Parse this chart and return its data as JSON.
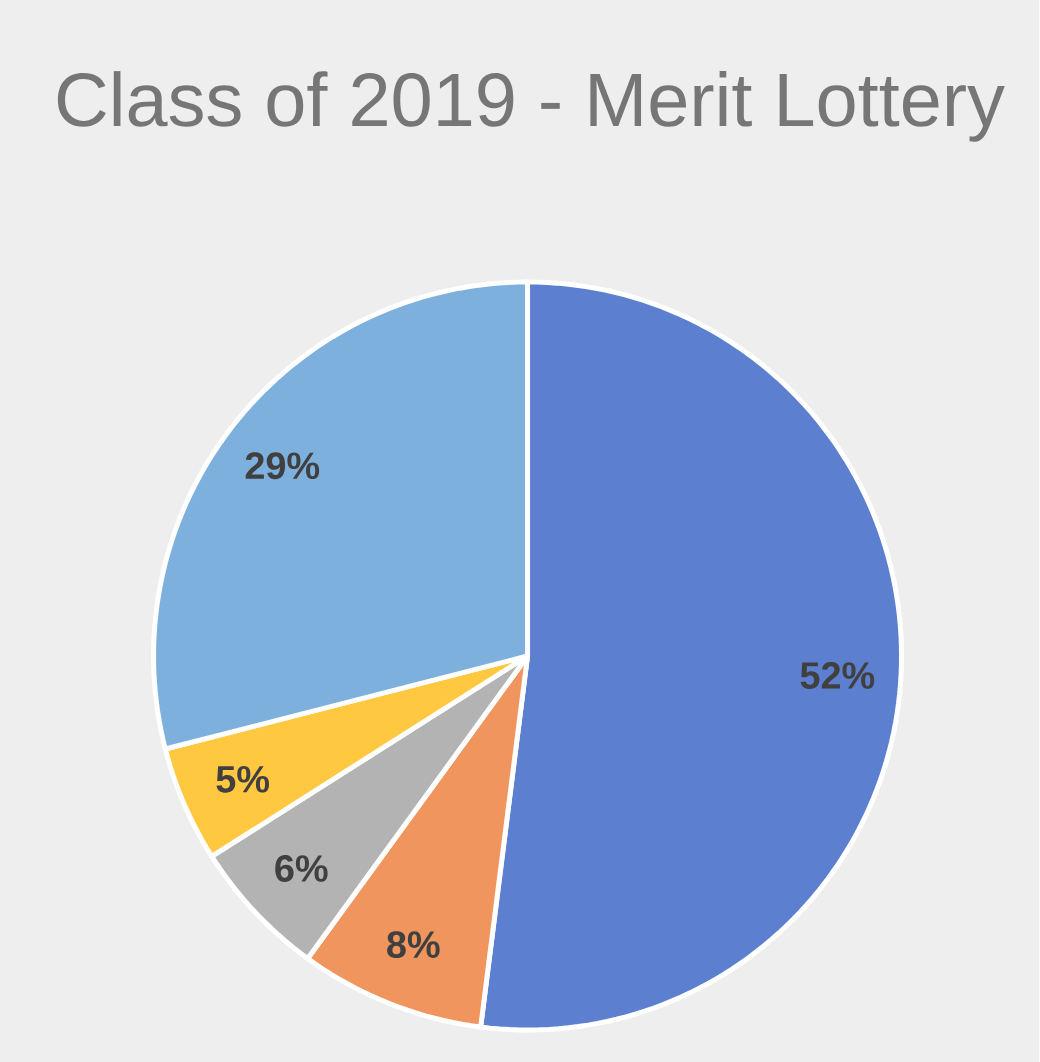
{
  "chart_data": {
    "type": "pie",
    "title": "Class of 2019 - Merit Lottery",
    "categories": [
      null,
      null,
      null,
      null,
      null
    ],
    "values": [
      52,
      8,
      6,
      5,
      29
    ],
    "colors": [
      "#5c80cf",
      "#f0955e",
      "#b3b3b3",
      "#ffc840",
      "#7eb0de"
    ],
    "value_labels": [
      "52%",
      "8%",
      "6%",
      "5%",
      "29%"
    ]
  }
}
